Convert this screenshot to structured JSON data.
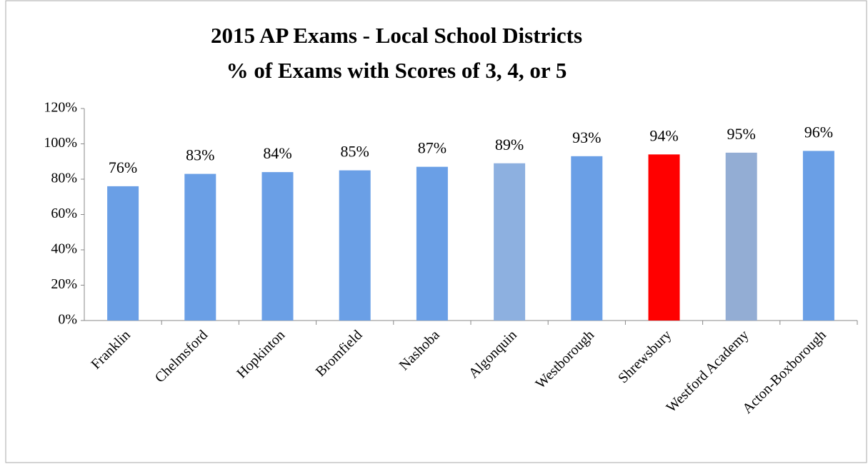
{
  "chart_data": {
    "type": "bar",
    "title": "2015 AP Exams - Local School Districts",
    "subtitle": "% of Exams with Scores of 3, 4, or 5",
    "categories": [
      "Franklin",
      "Chelmsford",
      "Hopkinton",
      "Bromfield",
      "Nashoba",
      "Algonquin",
      "Westborough",
      "Shrewsbury",
      "Westford Academy",
      "Acton-Boxborough"
    ],
    "values": [
      76,
      83,
      84,
      85,
      87,
      89,
      93,
      94,
      95,
      96
    ],
    "value_labels": [
      "76%",
      "83%",
      "84%",
      "85%",
      "87%",
      "89%",
      "93%",
      "94%",
      "95%",
      "96%"
    ],
    "colors": [
      "#6a9fe6",
      "#6a9fe6",
      "#6a9fe6",
      "#6a9fe6",
      "#6a9fe6",
      "#8db0e0",
      "#6a9fe6",
      "#ff0000",
      "#93add4",
      "#6a9fe6"
    ],
    "ylim": [
      0,
      120
    ],
    "yticks": [
      {
        "value": 0,
        "label": "0%"
      },
      {
        "value": 20,
        "label": "20%"
      },
      {
        "value": 40,
        "label": "40%"
      },
      {
        "value": 60,
        "label": "60%"
      },
      {
        "value": 80,
        "label": "80%"
      },
      {
        "value": 100,
        "label": "100%"
      },
      {
        "value": 120,
        "label": "120%"
      }
    ],
    "grid": false
  }
}
